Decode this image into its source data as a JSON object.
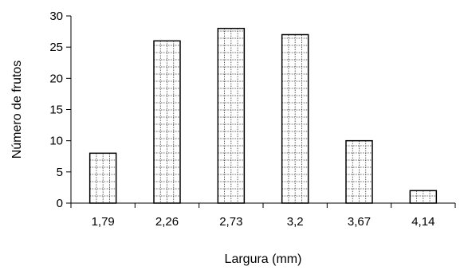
{
  "chart_data": {
    "type": "bar",
    "categories": [
      "1,79",
      "2,26",
      "2,73",
      "3,2",
      "3,67",
      "4,14"
    ],
    "values": [
      8,
      26,
      28,
      27,
      10,
      2
    ],
    "xlabel": "Largura (mm)",
    "ylabel": "Número de frutos",
    "ylim": [
      0,
      30
    ],
    "yticks": [
      "0",
      "5",
      "10",
      "15",
      "20",
      "25",
      "30"
    ],
    "grid": false,
    "legend": "none",
    "bar_fill": "dotted-grid",
    "colors": {
      "bar_outline": "#000000",
      "background": "#ffffff"
    }
  }
}
